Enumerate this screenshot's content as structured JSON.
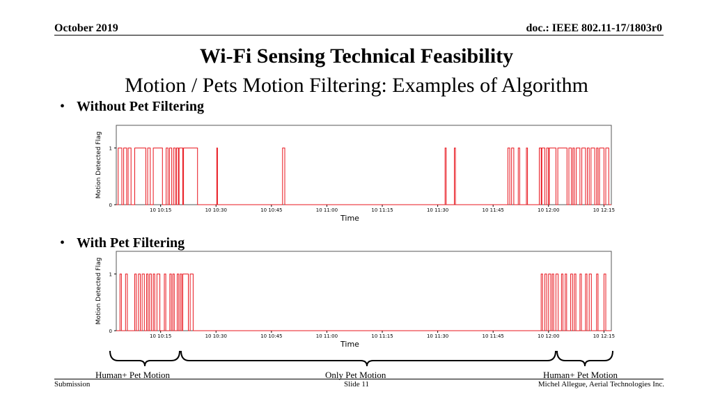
{
  "header": {
    "date": "October 2019",
    "doc_id": "doc.: IEEE 802.11-17/1803r0"
  },
  "slide": {
    "title": "Wi-Fi Sensing Technical Feasibility",
    "subtitle": "Motion / Pets Motion Filtering: Examples of Algorithm"
  },
  "bullets": {
    "without": "Without Pet Filtering",
    "with": "With Pet Filtering"
  },
  "colors": {
    "signal": "#e8141c",
    "axis": "#000000",
    "frame": "#555555"
  },
  "chart_data": [
    {
      "type": "line",
      "title": "",
      "xlabel": "Time",
      "ylabel": "Motion Detected Flag",
      "x_ticks": [
        "10 10:15",
        "10 10:30",
        "10 10:45",
        "10 11:00",
        "10 11:15",
        "10 11:30",
        "10 11:45",
        "10 12:00",
        "10 12:15"
      ],
      "y_ticks": [
        "0",
        "1"
      ],
      "ylim": [
        0,
        1.4
      ],
      "xlim": [
        "10 10:03",
        "10 12:17"
      ],
      "series": [
        {
          "pulses": [
            [
              "10:03.5",
              "10:04.5"
            ],
            [
              "10:05.0",
              "10:05.8"
            ],
            [
              "10:06.2",
              "10:07.0"
            ],
            [
              "10:08.0",
              "10:11.0"
            ],
            [
              "10:11.5",
              "10:12.2"
            ],
            [
              "10:13.0",
              "10:15.5"
            ],
            [
              "10:16.5",
              "10:17.0"
            ],
            [
              "10:17.4",
              "10:18.0"
            ],
            [
              "10:18.5",
              "10:19.0"
            ],
            [
              "10:19.3",
              "10:19.8"
            ],
            [
              "10:20.0",
              "10:21.0"
            ],
            [
              "10:21.2",
              "10:25.0"
            ],
            [
              "10:30.2",
              "10:30.4"
            ],
            [
              "10:48.0",
              "10:48.6"
            ],
            [
              "11:32.0",
              "11:32.3"
            ],
            [
              "11:34.5",
              "11:34.8"
            ],
            [
              "11:49.0",
              "11:49.5"
            ],
            [
              "11:50.0",
              "11:50.6"
            ],
            [
              "11:51.8",
              "11:52.2"
            ],
            [
              "11:54.0",
              "11:54.3"
            ],
            [
              "11:57.5",
              "11:58.0"
            ],
            [
              "11:58.2",
              "11:59.0"
            ],
            [
              "11:59.5",
              "12:00.0"
            ],
            [
              "12:00.2",
              "12:02.0"
            ],
            [
              "12:02.5",
              "12:05.0"
            ],
            [
              "12:05.5",
              "12:06.2"
            ],
            [
              "12:06.6",
              "12:07.0"
            ],
            [
              "12:07.5",
              "12:08.5"
            ],
            [
              "12:09.0",
              "12:10.0"
            ],
            [
              "12:10.5",
              "12:11.0"
            ],
            [
              "12:11.5",
              "12:12.5"
            ],
            [
              "12:13.0",
              "12:13.4"
            ],
            [
              "12:13.8",
              "12:15.0"
            ],
            [
              "12:15.5",
              "12:16.3"
            ]
          ]
        }
      ]
    },
    {
      "type": "line",
      "title": "",
      "xlabel": "Time",
      "ylabel": "Motion Detected Flag",
      "x_ticks": [
        "10 10:15",
        "10 10:30",
        "10 10:45",
        "10 11:00",
        "10 11:15",
        "10 11:30",
        "10 11:45",
        "10 12:00",
        "10 12:15"
      ],
      "y_ticks": [
        "0",
        "1"
      ],
      "ylim": [
        0,
        1.4
      ],
      "xlim": [
        "10 10:03",
        "10 12:17"
      ],
      "series": [
        {
          "pulses": [
            [
              "10:04.0",
              "10:04.4"
            ],
            [
              "10:05.5",
              "10:06.0"
            ],
            [
              "10:08.0",
              "10:08.4"
            ],
            [
              "10:09.0",
              "10:09.5"
            ],
            [
              "10:10.0",
              "10:10.6"
            ],
            [
              "10:11.2",
              "10:11.6"
            ],
            [
              "10:12.0",
              "10:12.5"
            ],
            [
              "10:13.0",
              "10:13.4"
            ],
            [
              "10:14.0",
              "10:14.8"
            ],
            [
              "10:16.0",
              "10:16.4"
            ],
            [
              "10:17.5",
              "10:17.9"
            ],
            [
              "10:18.3",
              "10:18.7"
            ],
            [
              "10:19.5",
              "10:19.9"
            ],
            [
              "10:20.3",
              "10:20.7"
            ],
            [
              "10:21.0",
              "10:22.5"
            ],
            [
              "10:23.0",
              "10:23.8"
            ],
            [
              "11:58.0",
              "11:58.4"
            ],
            [
              "11:59.0",
              "11:59.5"
            ],
            [
              "12:00.0",
              "12:00.6"
            ],
            [
              "12:01.0",
              "12:01.4"
            ],
            [
              "12:02.0",
              "12:02.6"
            ],
            [
              "12:03.5",
              "12:03.9"
            ],
            [
              "12:04.5",
              "12:04.9"
            ],
            [
              "12:06.0",
              "12:06.5"
            ],
            [
              "12:07.0",
              "12:07.4"
            ],
            [
              "12:08.5",
              "12:08.9"
            ],
            [
              "12:10.0",
              "12:10.4"
            ],
            [
              "12:11.0",
              "12:11.6"
            ],
            [
              "12:13.0",
              "12:13.4"
            ],
            [
              "12:15.0",
              "12:15.5"
            ]
          ]
        }
      ]
    }
  ],
  "annotations": {
    "left": "Human+ Pet Motion",
    "middle": "Only Pet Motion",
    "right": "Human+ Pet Motion"
  },
  "footer": {
    "left": "Submission",
    "center": "Slide 11",
    "right": "Michel Allegue, Aerial Technologies Inc."
  }
}
